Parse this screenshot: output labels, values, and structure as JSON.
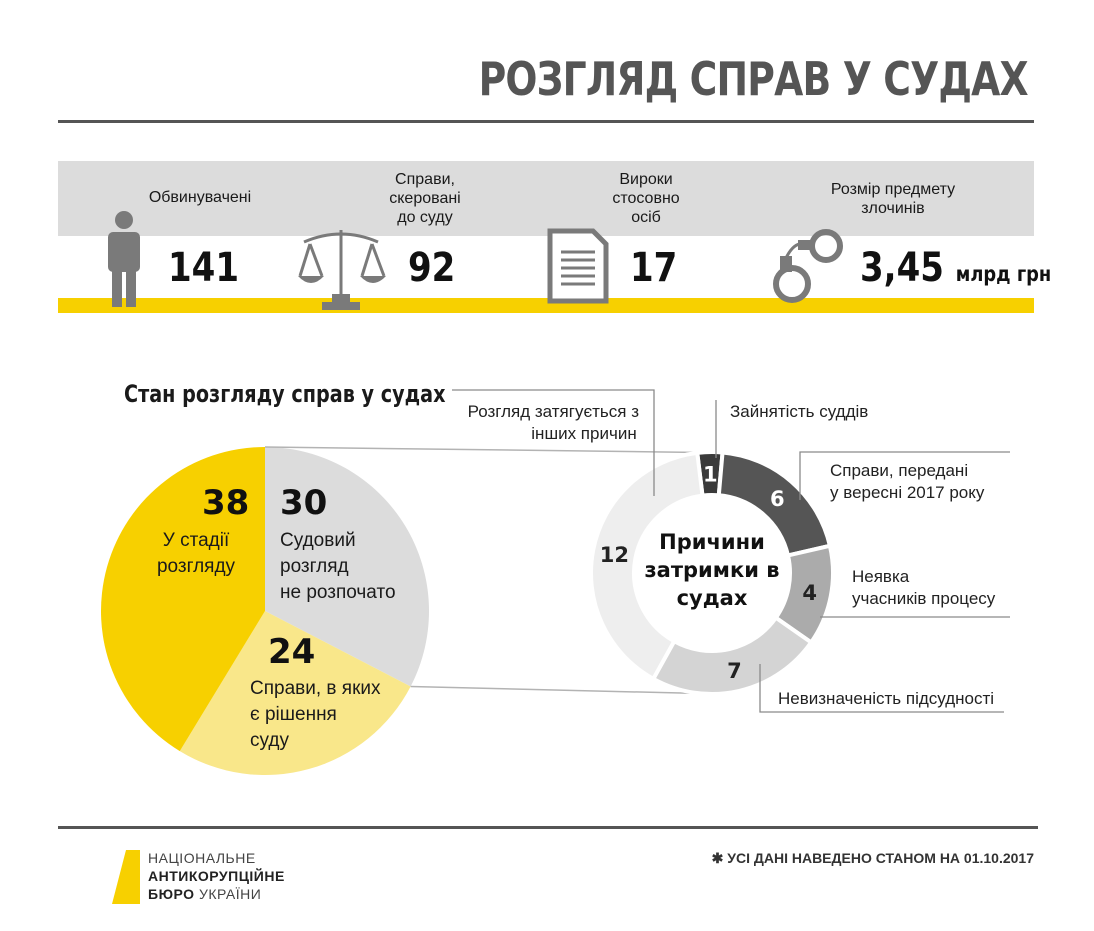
{
  "title": "РОЗГЛЯД СПРАВ У СУДАХ",
  "stats": {
    "accused": {
      "label": "Обвинувачені",
      "value": "141",
      "icon": "person-icon"
    },
    "cases": {
      "label_lines": [
        "Справи,",
        "скеровані",
        "до суду"
      ],
      "value": "92",
      "icon": "scales-icon"
    },
    "verdicts": {
      "label_lines": [
        "Вироки",
        "стосовно",
        "осіб"
      ],
      "value": "17",
      "icon": "document-icon"
    },
    "amount": {
      "label_lines": [
        "Розмір предмету",
        "злочинів"
      ],
      "value": "3,45",
      "unit": "млрд грн",
      "icon": "handcuffs-icon"
    }
  },
  "colors": {
    "yellow": "#f7d000",
    "light_yellow": "#f9e78a",
    "light_gray": "#dcdcdc",
    "dark_gray": "#555555",
    "mid_gray": "#ababab",
    "pale_gray": "#eeeeee"
  },
  "chart_data": [
    {
      "type": "pie",
      "title": "Стан розгляду справ у судах",
      "slices": [
        {
          "value": 30,
          "label_lines": [
            "Судовий",
            "розгляд",
            "не розпочато"
          ],
          "color": "#dcdcdc"
        },
        {
          "value": 24,
          "label_lines": [
            "Справи, в яких",
            "є рішення",
            "суду"
          ],
          "color": "#f9e78a"
        },
        {
          "value": 38,
          "label_lines": [
            "У стадії",
            "розгляду"
          ],
          "color": "#f7d000"
        }
      ]
    },
    {
      "type": "pie",
      "title_lines": [
        "Причини",
        "затримки в",
        "судах"
      ],
      "slices": [
        {
          "value": 1,
          "label_lines": [
            "Зайнятість суддів"
          ],
          "color": "#3a3a3a"
        },
        {
          "value": 6,
          "label_lines": [
            "Справи, передані",
            "у вересні 2017 року"
          ],
          "color": "#555555"
        },
        {
          "value": 4,
          "label_lines": [
            "Неявка",
            "учасників процесу"
          ],
          "color": "#ababab"
        },
        {
          "value": 7,
          "label_lines": [
            "Невизначеність підсудності"
          ],
          "color": "#d4d4d4"
        },
        {
          "value": 12,
          "label_lines": [
            "Розгляд затягується з",
            "інших причин"
          ],
          "color": "#eeeeee"
        }
      ]
    }
  ],
  "footer": {
    "logo_lines": [
      "НАЦІОНАЛЬНЕ",
      "АНТИКОРУПЦІЙНЕ",
      "БЮРО"
    ],
    "logo_suffix": "УКРАЇНИ",
    "note": "✱  УСІ ДАНІ НАВЕДЕНО СТАНОМ НА 01.10.2017"
  }
}
